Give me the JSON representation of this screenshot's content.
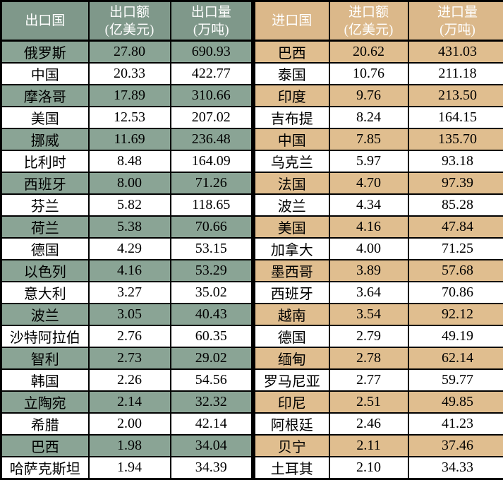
{
  "colors": {
    "border": "#000000",
    "header_text": "#ffffff",
    "body_text": "#000000",
    "export_header_bg": "#7f988a",
    "export_stripe_bg": "#8aa495",
    "import_header_bg": "#dbb88a",
    "import_stripe_bg": "#e0be8f",
    "row_default_bg": "#ffffff"
  },
  "tables": [
    {
      "id": "export",
      "header_bg": "#7f988a",
      "stripe_bg": "#8aa495",
      "headers": [
        {
          "lines": [
            "出口国"
          ]
        },
        {
          "lines": [
            "出口额",
            "(亿美元)"
          ]
        },
        {
          "lines": [
            "出口量",
            "(万吨)"
          ]
        }
      ],
      "rows": [
        [
          "俄罗斯",
          "27.80",
          "690.93"
        ],
        [
          "中国",
          "20.33",
          "422.77"
        ],
        [
          "摩洛哥",
          "17.89",
          "310.66"
        ],
        [
          "美国",
          "12.53",
          "207.02"
        ],
        [
          "挪威",
          "11.69",
          "236.48"
        ],
        [
          "比利时",
          "8.48",
          "164.09"
        ],
        [
          "西班牙",
          "8.00",
          "71.26"
        ],
        [
          "芬兰",
          "5.82",
          "118.65"
        ],
        [
          "荷兰",
          "5.38",
          "70.66"
        ],
        [
          "德国",
          "4.29",
          "53.15"
        ],
        [
          "以色列",
          "4.16",
          "53.29"
        ],
        [
          "意大利",
          "3.27",
          "35.02"
        ],
        [
          "波兰",
          "3.05",
          "40.43"
        ],
        [
          "沙特阿拉伯",
          "2.76",
          "60.35"
        ],
        [
          "智利",
          "2.73",
          "29.02"
        ],
        [
          "韩国",
          "2.26",
          "54.56"
        ],
        [
          "立陶宛",
          "2.14",
          "32.32"
        ],
        [
          "希腊",
          "2.00",
          "42.14"
        ],
        [
          "巴西",
          "1.98",
          "34.04"
        ],
        [
          "哈萨克斯坦",
          "1.94",
          "34.39"
        ]
      ]
    },
    {
      "id": "import",
      "header_bg": "#dbb88a",
      "stripe_bg": "#e0be8f",
      "headers": [
        {
          "lines": [
            "进口国"
          ]
        },
        {
          "lines": [
            "进口额",
            "(亿美元)"
          ]
        },
        {
          "lines": [
            "进口量",
            "(万吨)"
          ]
        }
      ],
      "rows": [
        [
          "巴西",
          "20.62",
          "431.03"
        ],
        [
          "泰国",
          "10.76",
          "211.18"
        ],
        [
          "印度",
          "9.76",
          "213.50"
        ],
        [
          "吉布提",
          "8.24",
          "164.15"
        ],
        [
          "中国",
          "7.85",
          "135.70"
        ],
        [
          "乌克兰",
          "5.97",
          "93.18"
        ],
        [
          "法国",
          "4.70",
          "97.39"
        ],
        [
          "波兰",
          "4.34",
          "85.28"
        ],
        [
          "美国",
          "4.16",
          "47.84"
        ],
        [
          "加拿大",
          "4.00",
          "71.25"
        ],
        [
          "墨西哥",
          "3.89",
          "57.68"
        ],
        [
          "西班牙",
          "3.64",
          "70.86"
        ],
        [
          "越南",
          "3.54",
          "92.12"
        ],
        [
          "德国",
          "2.79",
          "49.19"
        ],
        [
          "缅甸",
          "2.78",
          "62.14"
        ],
        [
          "罗马尼亚",
          "2.77",
          "59.77"
        ],
        [
          "印尼",
          "2.51",
          "49.85"
        ],
        [
          "阿根廷",
          "2.46",
          "41.23"
        ],
        [
          "贝宁",
          "2.11",
          "37.46"
        ],
        [
          "土耳其",
          "2.10",
          "34.33"
        ]
      ]
    }
  ],
  "chart_data": [
    {
      "type": "table",
      "title": "出口国统计表",
      "columns": [
        "出口国",
        "出口额(亿美元)",
        "出口量(万吨)"
      ],
      "rows": [
        [
          "俄罗斯",
          27.8,
          690.93
        ],
        [
          "中国",
          20.33,
          422.77
        ],
        [
          "摩洛哥",
          17.89,
          310.66
        ],
        [
          "美国",
          12.53,
          207.02
        ],
        [
          "挪威",
          11.69,
          236.48
        ],
        [
          "比利时",
          8.48,
          164.09
        ],
        [
          "西班牙",
          8.0,
          71.26
        ],
        [
          "芬兰",
          5.82,
          118.65
        ],
        [
          "荷兰",
          5.38,
          70.66
        ],
        [
          "德国",
          4.29,
          53.15
        ],
        [
          "以色列",
          4.16,
          53.29
        ],
        [
          "意大利",
          3.27,
          35.02
        ],
        [
          "波兰",
          3.05,
          40.43
        ],
        [
          "沙特阿拉伯",
          2.76,
          60.35
        ],
        [
          "智利",
          2.73,
          29.02
        ],
        [
          "韩国",
          2.26,
          54.56
        ],
        [
          "立陶宛",
          2.14,
          32.32
        ],
        [
          "希腊",
          2.0,
          42.14
        ],
        [
          "巴西",
          1.98,
          34.04
        ],
        [
          "哈萨克斯坦",
          1.94,
          34.39
        ]
      ]
    },
    {
      "type": "table",
      "title": "进口国统计表",
      "columns": [
        "进口国",
        "进口额(亿美元)",
        "进口量(万吨)"
      ],
      "rows": [
        [
          "巴西",
          20.62,
          431.03
        ],
        [
          "泰国",
          10.76,
          211.18
        ],
        [
          "印度",
          9.76,
          213.5
        ],
        [
          "吉布提",
          8.24,
          164.15
        ],
        [
          "中国",
          7.85,
          135.7
        ],
        [
          "乌克兰",
          5.97,
          93.18
        ],
        [
          "法国",
          4.7,
          97.39
        ],
        [
          "波兰",
          4.34,
          85.28
        ],
        [
          "美国",
          4.16,
          47.84
        ],
        [
          "加拿大",
          4.0,
          71.25
        ],
        [
          "墨西哥",
          3.89,
          57.68
        ],
        [
          "西班牙",
          3.64,
          70.86
        ],
        [
          "越南",
          3.54,
          92.12
        ],
        [
          "德国",
          2.79,
          49.19
        ],
        [
          "缅甸",
          2.78,
          62.14
        ],
        [
          "罗马尼亚",
          2.77,
          59.77
        ],
        [
          "印尼",
          2.51,
          49.85
        ],
        [
          "阿根廷",
          2.46,
          41.23
        ],
        [
          "贝宁",
          2.11,
          37.46
        ],
        [
          "土耳其",
          2.1,
          34.33
        ]
      ]
    }
  ]
}
